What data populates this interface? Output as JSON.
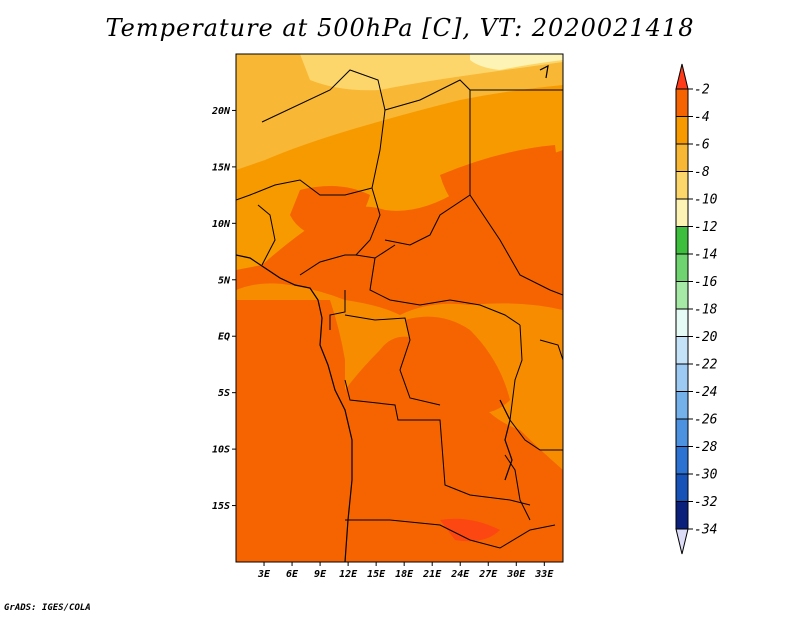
{
  "title": "Temperature at 500hPa [C], VT: 2020021418",
  "credit": "GrADS: IGES/COLA",
  "map": {
    "lat_range": [
      -20,
      25
    ],
    "lon_range": [
      0,
      35
    ],
    "lat_ticks": [
      {
        "value": 20,
        "label": "20N"
      },
      {
        "value": 15,
        "label": "15N"
      },
      {
        "value": 10,
        "label": "10N"
      },
      {
        "value": 5,
        "label": "5N"
      },
      {
        "value": 0,
        "label": "EQ"
      },
      {
        "value": -5,
        "label": "5S"
      },
      {
        "value": -10,
        "label": "10S"
      },
      {
        "value": -15,
        "label": "15S"
      }
    ],
    "lon_ticks": [
      {
        "value": 3,
        "label": "3E"
      },
      {
        "value": 6,
        "label": "6E"
      },
      {
        "value": 9,
        "label": "9E"
      },
      {
        "value": 12,
        "label": "12E"
      },
      {
        "value": 15,
        "label": "15E"
      },
      {
        "value": 18,
        "label": "18E"
      },
      {
        "value": 21,
        "label": "21E"
      },
      {
        "value": 24,
        "label": "24E"
      },
      {
        "value": 27,
        "label": "27E"
      },
      {
        "value": 30,
        "label": "30E"
      },
      {
        "value": 33,
        "label": "33E"
      }
    ]
  },
  "colorbar": {
    "labels": [
      "-2",
      "-4",
      "-6",
      "-8",
      "-10",
      "-12",
      "-14",
      "-16",
      "-18",
      "-20",
      "-22",
      "-24",
      "-26",
      "-28",
      "-30",
      "-32",
      "-34"
    ],
    "colors": [
      "#ff3b1a",
      "#f56400",
      "#f79a00",
      "#f8b734",
      "#fcd66a",
      "#fdf3b4",
      "#3dbe3d",
      "#6fd46f",
      "#a6e8a6",
      "#e6fbf6",
      "#c4e2f8",
      "#9ccaf2",
      "#74b0ea",
      "#4c92e0",
      "#2c72d2",
      "#1652b8",
      "#0b207a",
      "#dcdcf6"
    ]
  }
}
